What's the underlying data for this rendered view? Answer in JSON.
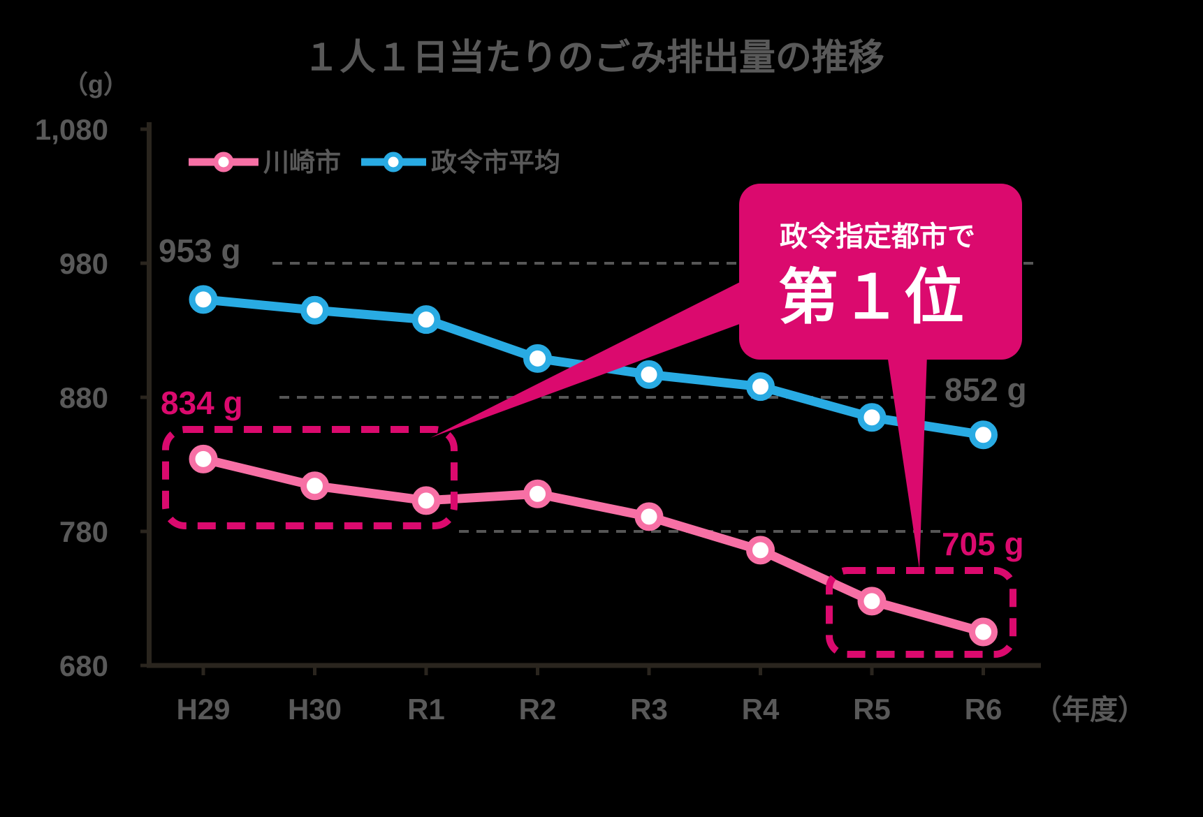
{
  "title": "１人１日当たりのごみ排出量の推移",
  "y_axis_unit": "（g）",
  "x_axis_unit": "（年度）",
  "colors": {
    "kawasaki_line": "#F770A5",
    "average_line": "#29ABE3",
    "accent_magenta": "#DB0A6E",
    "text_gray": "#595959",
    "gridline_gray": "#565656",
    "axis_dark": "#2A251E",
    "background": "#000000",
    "callout_text": "#FFFFFF"
  },
  "legend": {
    "kawasaki_label": "川崎市",
    "average_label": "政令市平均"
  },
  "callout": {
    "line1": "政令指定都市で",
    "line2": "第１位"
  },
  "annotations": {
    "average_start": "953 g",
    "kawasaki_start": "834 g",
    "average_end": "852 g",
    "kawasaki_end": "705 g"
  },
  "chart_data": {
    "type": "line",
    "title": "１人１日当たりのごみ排出量の推移",
    "xlabel": "年度",
    "ylabel": "g",
    "ylim": [
      680,
      1080
    ],
    "grid": "dotted horizontal at 980, 880, 780",
    "legend_position": "top-left inside plot",
    "categories": [
      "H29",
      "H30",
      "R1",
      "R2",
      "R3",
      "R4",
      "R5",
      "R6"
    ],
    "series": [
      {
        "id": "average",
        "name": "政令市平均",
        "color": "#29ABE3",
        "values": [
          953,
          945,
          938,
          909,
          897,
          888,
          865,
          852
        ]
      },
      {
        "id": "kawasaki",
        "name": "川崎市",
        "color": "#F770A5",
        "values": [
          834,
          814,
          803,
          808,
          791,
          766,
          728,
          705
        ]
      }
    ],
    "y_ticks": [
      {
        "label": "1,080",
        "value": 1080
      },
      {
        "label": "980",
        "value": 980
      },
      {
        "label": "880",
        "value": 880
      },
      {
        "label": "780",
        "value": 780
      },
      {
        "label": "680",
        "value": 680
      }
    ],
    "highlights": [
      "dashed box around 川崎市 H29–R1 points",
      "dashed box around 川崎市 R5–R6 points",
      "callout 政令指定都市で第１位 pointing to both boxes"
    ]
  }
}
